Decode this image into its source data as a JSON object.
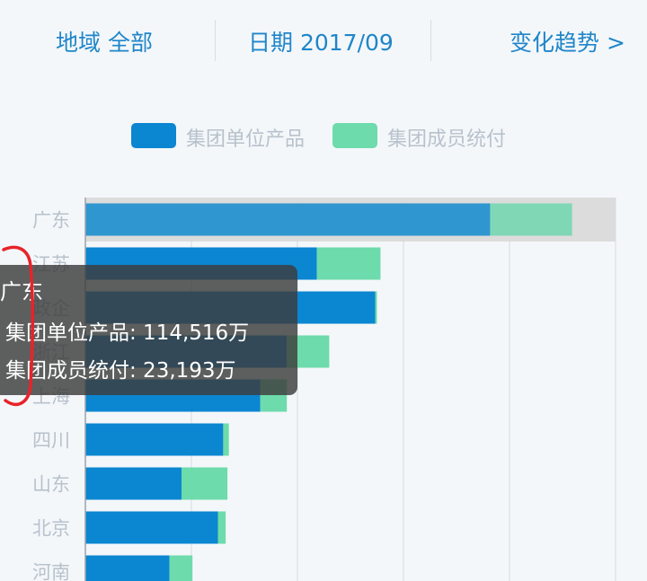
{
  "header": {
    "region": "地域 全部",
    "date": "日期 2017/09",
    "trend": "变化趋势 >"
  },
  "colors": {
    "accent": "#1f86c9",
    "series_product": "#0b86d1",
    "series_product_highlight": "#2f96cf",
    "series_member": "#6ddbab",
    "series_member_highlight": "#80d7b5",
    "highlight_band": "#dcdcdc",
    "category_label": "#b8c2cc"
  },
  "chart_data": {
    "type": "bar",
    "orientation": "horizontal",
    "stacked": true,
    "categories": [
      "广东",
      "江苏",
      "政企",
      "浙江",
      "上海",
      "四川",
      "山东",
      "北京",
      "河南"
    ],
    "series": [
      {
        "name": "集团单位产品",
        "values": [
          114516,
          65500,
          82000,
          57000,
          49500,
          39000,
          27200,
          37500,
          23800
        ]
      },
      {
        "name": "集团成员统付",
        "values": [
          23193,
          18000,
          500,
          12000,
          7500,
          1600,
          13000,
          2200,
          6500
        ]
      }
    ],
    "xlim": [
      0,
      150000
    ],
    "grid": true,
    "legend_position": "top",
    "highlighted_category": "广东"
  },
  "tooltip": {
    "title": "广东",
    "row1": "集团单位产品: 114,516万",
    "row2": "集团成员统付: 23,193万"
  }
}
